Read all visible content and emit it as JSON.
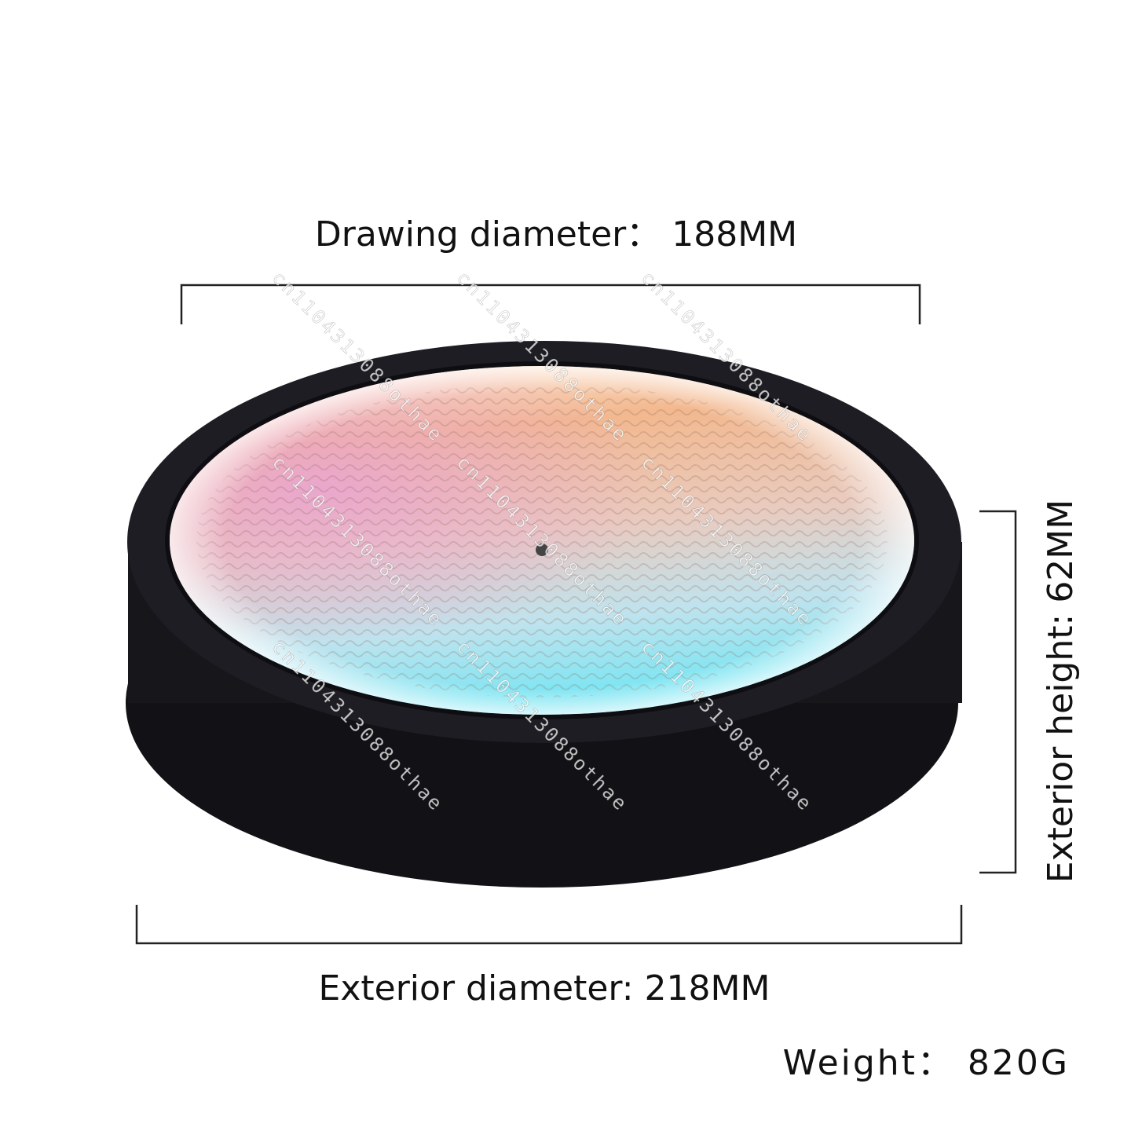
{
  "labels": {
    "drawing_diameter": "Drawing diameter： 188MM",
    "exterior_height": "Exterior height:  62MM",
    "exterior_diameter": "Exterior diameter:  218MM",
    "weight": "Weight：  820G"
  },
  "watermark": "cn1104313088othae"
}
